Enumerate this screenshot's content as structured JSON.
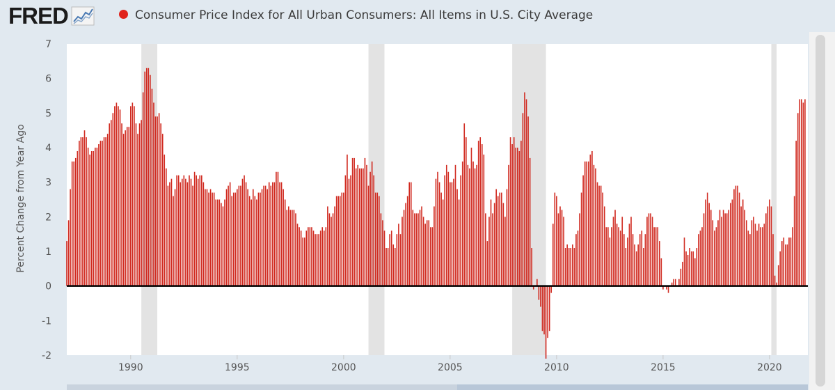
{
  "header": {
    "logo_text": "FRED",
    "title": "Consumer Price Index for All Urban Consumers: All Items in U.S. City Average",
    "series_color": "#e0221b"
  },
  "chart_data": {
    "type": "bar",
    "title": "Consumer Price Index for All Urban Consumers: All Items in U.S. City Average",
    "xlabel": "",
    "ylabel": "Percent Change from Year Ago",
    "ylim": [
      -2,
      7
    ],
    "xlim": [
      1987.0,
      2021.8
    ],
    "yticks": [
      "7",
      "6",
      "5",
      "4",
      "3",
      "2",
      "1",
      "0",
      "-1",
      "-2"
    ],
    "xticks": [
      "1990",
      "1995",
      "2000",
      "2005",
      "2010",
      "2015",
      "2020"
    ],
    "grid": false,
    "bar_color": "#d0281e",
    "recessions": [
      {
        "start": "1990-07",
        "end": "1991-03"
      },
      {
        "start": "2001-03",
        "end": "2001-11"
      },
      {
        "start": "2007-12",
        "end": "2009-06"
      },
      {
        "start": "2020-02",
        "end": "2020-04"
      }
    ],
    "series": [
      {
        "name": "Consumer Price Index for All Urban Consumers: All Items in U.S. City Average",
        "x_start": "1987-01",
        "frequency": "monthly",
        "values": [
          1.3,
          1.9,
          2.8,
          3.6,
          3.6,
          3.7,
          3.9,
          4.2,
          4.3,
          4.3,
          4.5,
          4.3,
          4.0,
          3.8,
          3.9,
          3.9,
          4.0,
          4.0,
          4.1,
          4.2,
          4.2,
          4.3,
          4.3,
          4.4,
          4.7,
          4.8,
          5.0,
          5.2,
          5.3,
          5.2,
          5.1,
          4.7,
          4.4,
          4.5,
          4.6,
          4.6,
          5.2,
          5.3,
          5.2,
          4.7,
          4.4,
          4.7,
          4.8,
          5.6,
          6.2,
          6.3,
          6.3,
          6.1,
          5.7,
          5.3,
          4.9,
          4.9,
          5.0,
          4.7,
          4.4,
          3.8,
          3.4,
          2.9,
          3.0,
          3.1,
          2.6,
          2.8,
          3.2,
          3.2,
          3.0,
          3.1,
          3.2,
          3.1,
          3.0,
          3.2,
          3.1,
          2.9,
          3.3,
          3.2,
          3.1,
          3.2,
          3.2,
          3.0,
          2.8,
          2.8,
          2.7,
          2.8,
          2.7,
          2.7,
          2.5,
          2.5,
          2.5,
          2.4,
          2.3,
          2.5,
          2.8,
          2.9,
          3.0,
          2.6,
          2.7,
          2.7,
          2.8,
          2.9,
          2.9,
          3.1,
          3.2,
          3.0,
          2.8,
          2.6,
          2.5,
          2.8,
          2.6,
          2.5,
          2.7,
          2.7,
          2.8,
          2.9,
          2.9,
          2.8,
          3.0,
          2.9,
          3.0,
          3.0,
          3.3,
          3.3,
          3.0,
          3.0,
          2.8,
          2.5,
          2.2,
          2.3,
          2.2,
          2.2,
          2.2,
          2.1,
          1.8,
          1.7,
          1.6,
          1.4,
          1.4,
          1.6,
          1.7,
          1.7,
          1.7,
          1.6,
          1.5,
          1.5,
          1.5,
          1.6,
          1.7,
          1.6,
          1.7,
          2.3,
          2.1,
          2.0,
          2.1,
          2.3,
          2.6,
          2.6,
          2.6,
          2.7,
          2.7,
          3.2,
          3.8,
          3.1,
          3.2,
          3.7,
          3.7,
          3.4,
          3.5,
          3.4,
          3.4,
          3.4,
          3.7,
          3.5,
          2.9,
          3.3,
          3.6,
          3.2,
          2.7,
          2.7,
          2.6,
          2.1,
          1.9,
          1.6,
          1.1,
          1.1,
          1.5,
          1.6,
          1.2,
          1.1,
          1.5,
          1.8,
          1.5,
          2.0,
          2.2,
          2.4,
          2.6,
          3.0,
          3.0,
          2.2,
          2.1,
          2.1,
          2.1,
          2.2,
          2.3,
          2.0,
          1.8,
          1.9,
          1.9,
          1.7,
          1.7,
          2.3,
          3.1,
          3.3,
          3.0,
          2.7,
          2.5,
          3.2,
          3.5,
          3.3,
          3.0,
          3.0,
          3.1,
          3.5,
          2.8,
          2.5,
          3.2,
          3.6,
          4.7,
          4.3,
          3.5,
          3.4,
          4.0,
          3.6,
          3.4,
          3.5,
          4.2,
          4.3,
          4.1,
          3.8,
          2.1,
          1.3,
          2.0,
          2.5,
          2.1,
          2.4,
          2.8,
          2.6,
          2.7,
          2.7,
          2.4,
          2.0,
          2.8,
          3.5,
          4.3,
          4.1,
          4.3,
          4.0,
          4.0,
          3.9,
          4.2,
          5.0,
          5.6,
          5.4,
          4.9,
          3.7,
          1.1,
          -0.1,
          0.0,
          0.2,
          -0.4,
          -0.6,
          -1.3,
          -1.4,
          -2.1,
          -1.5,
          -1.3,
          -0.2,
          1.8,
          2.7,
          2.6,
          2.1,
          2.3,
          2.2,
          2.0,
          1.1,
          1.2,
          1.1,
          1.1,
          1.2,
          1.1,
          1.5,
          1.6,
          2.1,
          2.7,
          3.2,
          3.6,
          3.6,
          3.6,
          3.8,
          3.9,
          3.5,
          3.4,
          3.0,
          2.9,
          2.9,
          2.7,
          2.3,
          1.7,
          1.7,
          1.4,
          1.7,
          2.0,
          2.2,
          1.8,
          1.7,
          1.6,
          2.0,
          1.5,
          1.1,
          1.4,
          1.8,
          2.0,
          1.5,
          1.2,
          1.0,
          1.2,
          1.5,
          1.6,
          1.1,
          1.5,
          2.0,
          2.1,
          2.1,
          2.0,
          1.7,
          1.7,
          1.7,
          1.3,
          0.8,
          -0.1,
          0.0,
          -0.1,
          -0.2,
          0.0,
          0.1,
          0.2,
          0.2,
          0.0,
          0.2,
          0.5,
          0.7,
          1.4,
          1.0,
          0.9,
          1.1,
          1.0,
          1.0,
          0.8,
          1.1,
          1.5,
          1.6,
          1.7,
          2.1,
          2.5,
          2.7,
          2.4,
          2.2,
          1.9,
          1.6,
          1.7,
          1.9,
          2.2,
          2.0,
          2.2,
          2.1,
          2.1,
          2.2,
          2.4,
          2.5,
          2.8,
          2.9,
          2.9,
          2.7,
          2.3,
          2.5,
          2.2,
          1.9,
          1.6,
          1.5,
          1.9,
          2.0,
          1.8,
          1.6,
          1.8,
          1.7,
          1.7,
          1.8,
          2.1,
          2.3,
          2.5,
          2.3,
          1.5,
          0.3,
          0.1,
          0.6,
          1.0,
          1.3,
          1.4,
          1.2,
          1.2,
          1.4,
          1.4,
          1.7,
          2.6,
          4.2,
          5.0,
          5.4,
          5.4,
          5.3,
          5.4
        ]
      }
    ]
  }
}
